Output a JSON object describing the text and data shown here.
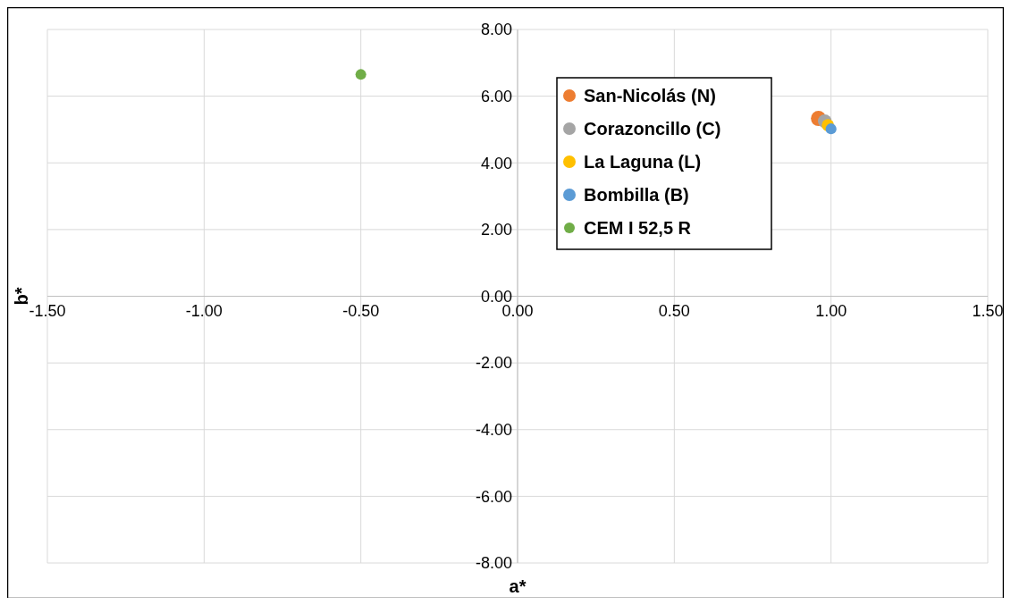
{
  "chart_data": {
    "type": "scatter",
    "xlabel": "a*",
    "ylabel": "b*",
    "xlim": [
      -1.5,
      1.5
    ],
    "ylim": [
      -8,
      8
    ],
    "xticks": [
      {
        "value": -1.5,
        "label": "-1.50"
      },
      {
        "value": -1,
        "label": "-1.00"
      },
      {
        "value": -0.5,
        "label": "-0.50"
      },
      {
        "value": 0,
        "label": "0.00"
      },
      {
        "value": 0.5,
        "label": "0.50"
      },
      {
        "value": 1,
        "label": "1.00"
      },
      {
        "value": 1.5,
        "label": "1.50"
      }
    ],
    "yticks": [
      {
        "value": -8,
        "label": "-8.00"
      },
      {
        "value": -6,
        "label": "-6.00"
      },
      {
        "value": -4,
        "label": "-4.00"
      },
      {
        "value": -2,
        "label": "-2.00"
      },
      {
        "value": 0,
        "label": "0.00"
      },
      {
        "value": 2,
        "label": "2.00"
      },
      {
        "value": 4,
        "label": "4.00"
      },
      {
        "value": 6,
        "label": "6.00"
      },
      {
        "value": 8,
        "label": "8.00"
      }
    ],
    "grid": true,
    "legend": "top right",
    "marker": "circle",
    "series": [
      {
        "name": "San-Nicolás (N)",
        "color": "#ed7d31",
        "x": [
          0.96
        ],
        "values": [
          5.33
        ]
      },
      {
        "name": "Corazoncillo (C)",
        "color": "#a5a5a5",
        "x": [
          0.98
        ],
        "values": [
          5.25
        ]
      },
      {
        "name": "La Laguna (L)",
        "color": "#ffc000",
        "x": [
          0.99
        ],
        "values": [
          5.13
        ]
      },
      {
        "name": "Bombilla (B)",
        "color": "#5b9bd5",
        "x": [
          1.0
        ],
        "values": [
          5.02
        ]
      },
      {
        "name": "CEM I 52,5 R",
        "color": "#70ad47",
        "x": [
          -0.5
        ],
        "values": [
          6.65
        ]
      }
    ]
  }
}
